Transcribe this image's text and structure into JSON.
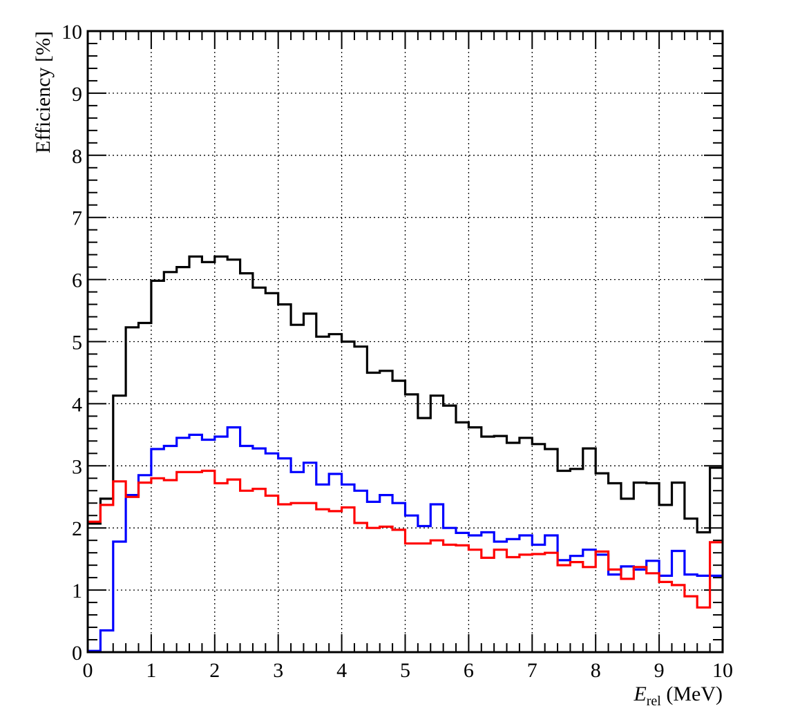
{
  "chart_data": {
    "type": "line",
    "style": "step-histogram",
    "xlabel": "E",
    "xlabel_sub": "rel",
    "xlabel_unit": " (MeV)",
    "ylabel": "Efficiency [%]",
    "xlim": [
      0,
      10
    ],
    "ylim": [
      0,
      10
    ],
    "x_ticks": [
      "0",
      "1",
      "2",
      "3",
      "4",
      "5",
      "6",
      "7",
      "8",
      "9",
      "10"
    ],
    "y_ticks": [
      "0",
      "1",
      "2",
      "3",
      "4",
      "5",
      "6",
      "7",
      "8",
      "9",
      "10"
    ],
    "grid": true,
    "bin_width": 0.2,
    "bin_edges_start": 0,
    "series": [
      {
        "color": "#000000",
        "values": [
          2.07,
          2.47,
          4.13,
          5.23,
          5.3,
          5.98,
          6.12,
          6.2,
          6.37,
          6.28,
          6.37,
          6.32,
          6.1,
          5.87,
          5.78,
          5.6,
          5.27,
          5.45,
          5.08,
          5.12,
          5.0,
          4.92,
          4.5,
          4.53,
          4.37,
          4.15,
          3.77,
          4.13,
          3.97,
          3.7,
          3.62,
          3.47,
          3.48,
          3.37,
          3.45,
          3.35,
          3.27,
          2.92,
          2.95,
          3.28,
          2.88,
          2.72,
          2.47,
          2.73,
          2.72,
          2.37,
          2.73,
          2.15,
          1.93,
          2.97
        ]
      },
      {
        "color": "#0000ff",
        "values": [
          0.02,
          0.35,
          1.78,
          2.53,
          2.85,
          3.27,
          3.32,
          3.45,
          3.5,
          3.42,
          3.47,
          3.62,
          3.32,
          3.28,
          3.2,
          3.12,
          2.9,
          3.05,
          2.7,
          2.87,
          2.7,
          2.6,
          2.42,
          2.53,
          2.4,
          2.2,
          2.03,
          2.38,
          2.0,
          1.92,
          1.88,
          1.93,
          1.78,
          1.82,
          1.88,
          1.73,
          1.88,
          1.48,
          1.55,
          1.65,
          1.57,
          1.25,
          1.38,
          1.33,
          1.47,
          1.23,
          1.63,
          1.25,
          1.23,
          1.23
        ]
      },
      {
        "color": "#ff0000",
        "values": [
          2.1,
          2.37,
          2.75,
          2.5,
          2.73,
          2.8,
          2.77,
          2.9,
          2.9,
          2.92,
          2.72,
          2.78,
          2.6,
          2.63,
          2.52,
          2.38,
          2.4,
          2.4,
          2.3,
          2.27,
          2.33,
          2.08,
          2.0,
          2.02,
          1.97,
          1.75,
          1.75,
          1.8,
          1.73,
          1.72,
          1.65,
          1.52,
          1.65,
          1.53,
          1.57,
          1.58,
          1.6,
          1.4,
          1.45,
          1.37,
          1.62,
          1.33,
          1.18,
          1.37,
          1.27,
          1.13,
          1.08,
          0.9,
          0.72,
          1.77
        ]
      }
    ]
  }
}
